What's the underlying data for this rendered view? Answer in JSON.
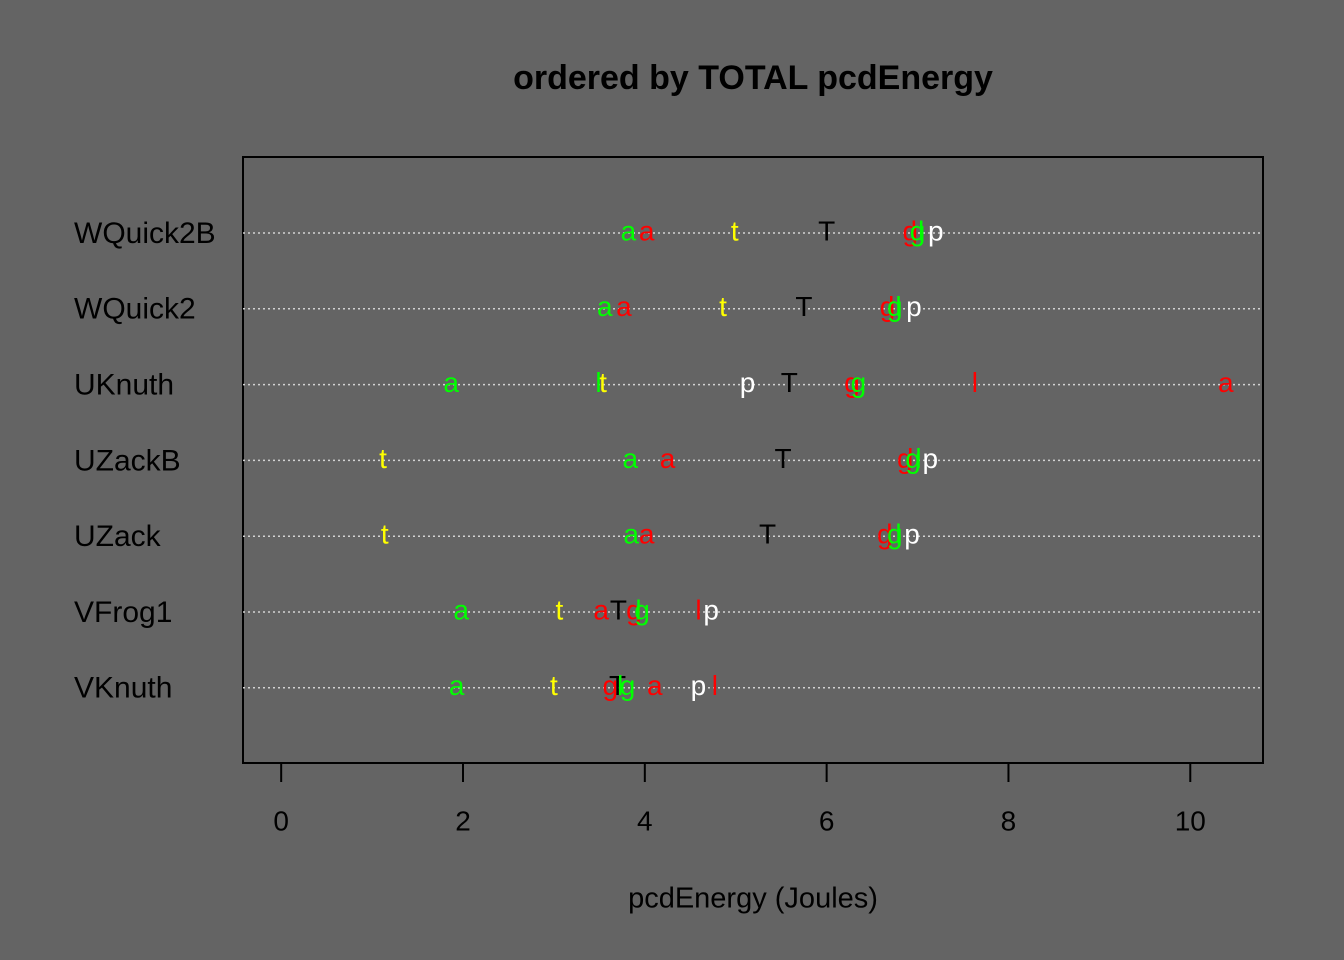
{
  "chart_data": {
    "type": "dotchart",
    "title": "ordered by TOTAL pcdEnergy",
    "x_label": "pcdEnergy (Joules)",
    "categories": [
      "WQuick2B",
      "WQuick2",
      "UKnuth",
      "UZackB",
      "UZack",
      "VFrog1",
      "VKnuth"
    ],
    "series": [
      {
        "name": "a",
        "color": "#00ff00",
        "values": [
          3.82,
          3.56,
          1.87,
          3.84,
          3.85,
          1.98,
          1.93
        ]
      },
      {
        "name": "a",
        "color": "#ff0000",
        "values": [
          4.02,
          3.77,
          10.39,
          4.25,
          4.02,
          3.52,
          4.11
        ]
      },
      {
        "name": "t",
        "color": "#ffff00",
        "values": [
          4.99,
          4.86,
          3.54,
          1.12,
          1.14,
          3.06,
          3.0
        ]
      },
      {
        "name": "T",
        "color": "#000000",
        "values": [
          6.0,
          5.75,
          5.59,
          5.52,
          5.35,
          3.71,
          3.7
        ]
      },
      {
        "name": "g",
        "color": "#ff0000",
        "values": [
          6.92,
          6.67,
          6.28,
          6.86,
          6.64,
          3.88,
          3.62
        ]
      },
      {
        "name": "l",
        "color": "#ff0000",
        "values": [
          6.96,
          6.71,
          7.63,
          6.92,
          6.69,
          4.59,
          4.77
        ]
      },
      {
        "name": "g",
        "color": "#00ff00",
        "values": [
          7.0,
          6.75,
          6.35,
          6.95,
          6.75,
          3.97,
          3.81
        ]
      },
      {
        "name": "l",
        "color": "#00ff00",
        "values": [
          7.04,
          6.79,
          3.49,
          7.01,
          6.79,
          3.93,
          3.73
        ]
      },
      {
        "name": "p",
        "color": "#ffffff",
        "values": [
          7.2,
          6.96,
          5.13,
          7.14,
          6.94,
          4.73,
          4.59
        ]
      }
    ],
    "xlim": [
      -0.42,
      10.8
    ],
    "xticks": [
      0,
      2,
      4,
      6,
      8,
      10
    ],
    "grid": true
  }
}
